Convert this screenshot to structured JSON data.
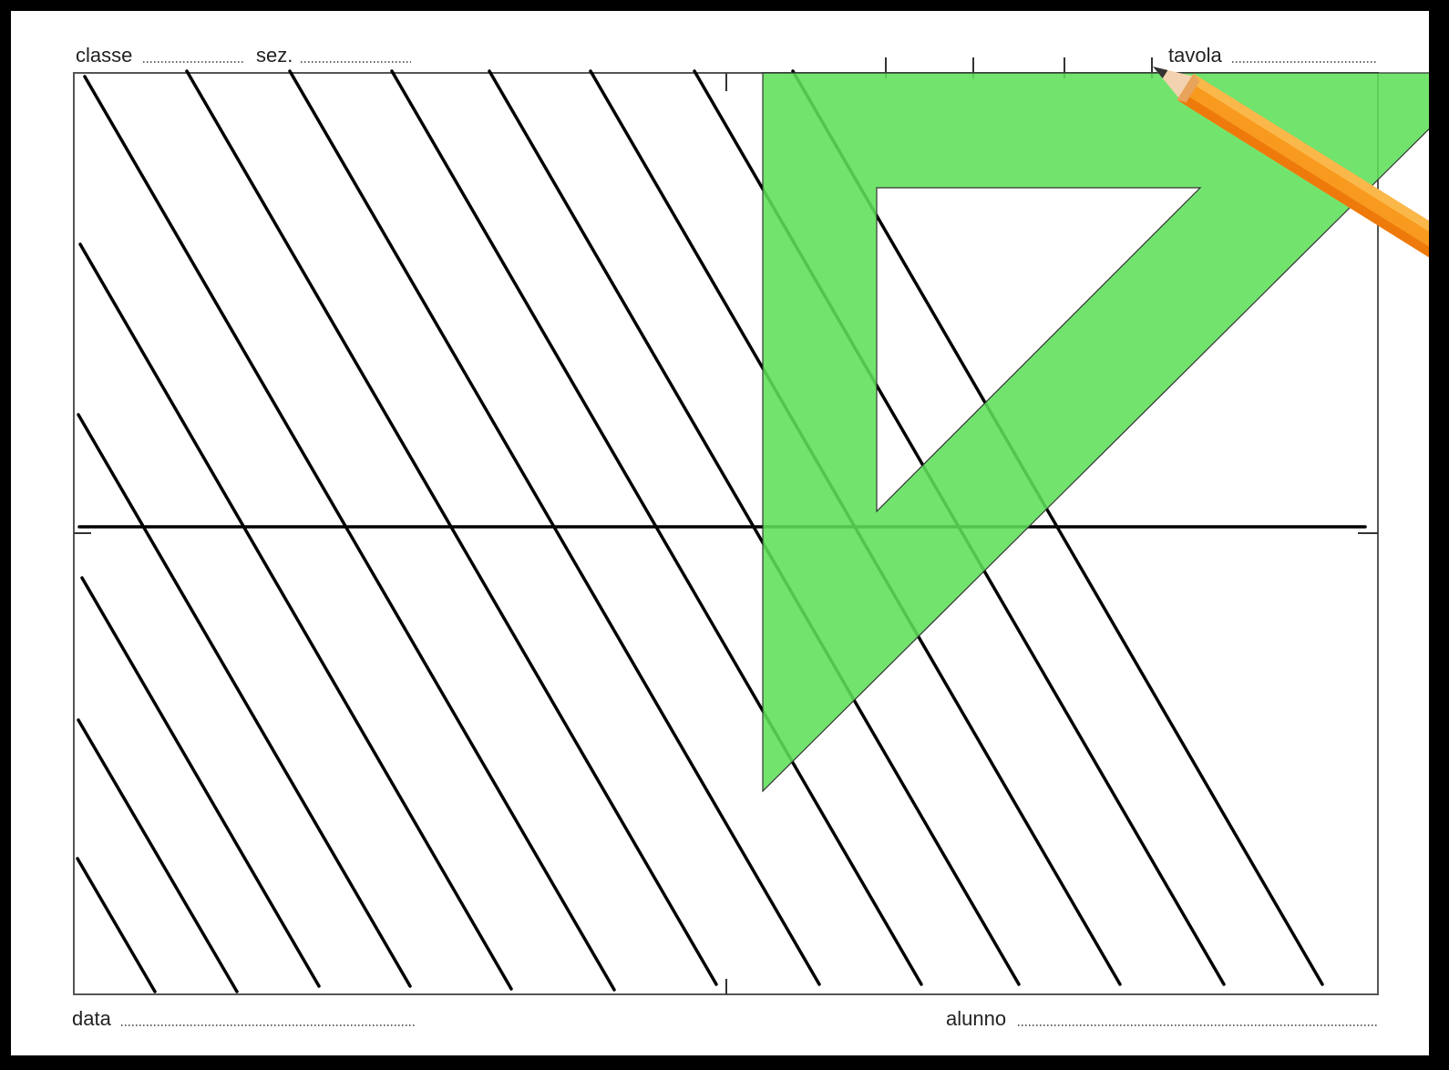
{
  "header": {
    "class_label": "classe",
    "section_label": "sez.",
    "sheet_label": "tavola"
  },
  "footer": {
    "date_label": "data",
    "student_label": "alunno"
  }
}
